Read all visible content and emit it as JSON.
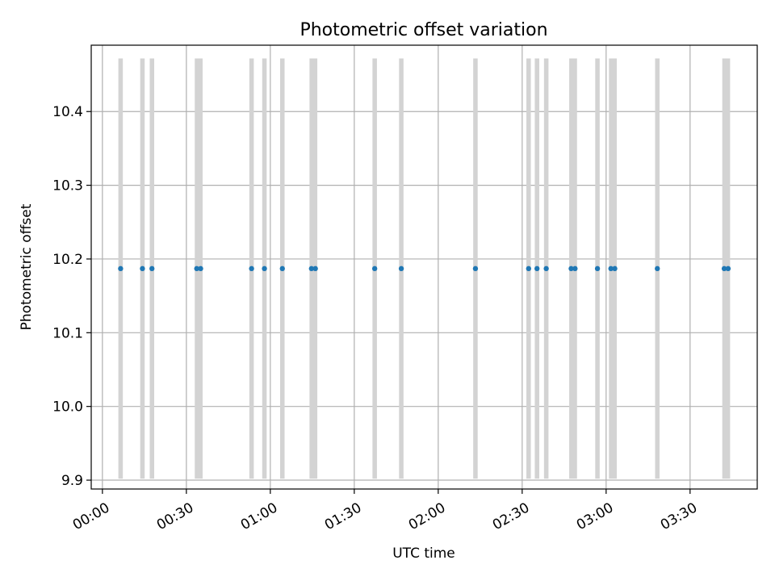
{
  "chart_data": {
    "type": "scatter",
    "title": "Photometric offset variation",
    "xlabel": "UTC time",
    "ylabel": "Photometric offset",
    "x_unit": "minutes",
    "xlim": [
      -4,
      234
    ],
    "ylim": [
      9.888,
      10.49
    ],
    "grid": true,
    "x_ticks": [
      {
        "value": 0,
        "label": "00:00"
      },
      {
        "value": 30,
        "label": "00:30"
      },
      {
        "value": 60,
        "label": "01:00"
      },
      {
        "value": 90,
        "label": "01:30"
      },
      {
        "value": 120,
        "label": "02:00"
      },
      {
        "value": 150,
        "label": "02:30"
      },
      {
        "value": 180,
        "label": "03:00"
      },
      {
        "value": 210,
        "label": "03:30"
      }
    ],
    "y_ticks": [
      {
        "value": 9.9,
        "label": "9.9"
      },
      {
        "value": 10.0,
        "label": "10.0"
      },
      {
        "value": 10.1,
        "label": "10.1"
      },
      {
        "value": 10.2,
        "label": "10.2"
      },
      {
        "value": 10.3,
        "label": "10.3"
      },
      {
        "value": 10.4,
        "label": "10.4"
      }
    ],
    "bands": {
      "y_range": [
        9.902,
        10.472
      ],
      "color": "#d3d3d3",
      "intervals": [
        [
          5.7,
          7.3
        ],
        [
          13.5,
          15.1
        ],
        [
          16.9,
          18.5
        ],
        [
          33.0,
          35.8
        ],
        [
          52.5,
          54.1
        ],
        [
          57.1,
          58.7
        ],
        [
          63.5,
          65.1
        ],
        [
          74.0,
          76.8
        ],
        [
          96.5,
          98.1
        ],
        [
          106.0,
          107.6
        ],
        [
          132.5,
          134.1
        ],
        [
          151.5,
          153.1
        ],
        [
          154.5,
          156.1
        ],
        [
          157.8,
          159.4
        ],
        [
          166.8,
          169.6
        ],
        [
          176.1,
          177.7
        ],
        [
          181.0,
          183.8
        ],
        [
          197.5,
          199.1
        ],
        [
          221.5,
          224.3
        ]
      ]
    },
    "series": [
      {
        "color": "#1f77b4",
        "x": [
          6.5,
          14.3,
          17.7,
          33.7,
          35.1,
          53.3,
          57.9,
          64.3,
          74.7,
          76.1,
          97.3,
          106.8,
          133.3,
          152.3,
          155.3,
          158.6,
          167.5,
          168.9,
          176.9,
          181.7,
          183.1,
          198.3,
          222.2,
          223.6
        ],
        "y": [
          10.187,
          10.187,
          10.187,
          10.187,
          10.187,
          10.187,
          10.187,
          10.187,
          10.187,
          10.187,
          10.187,
          10.187,
          10.187,
          10.187,
          10.187,
          10.187,
          10.187,
          10.187,
          10.187,
          10.187,
          10.187,
          10.187,
          10.187,
          10.187
        ]
      }
    ]
  }
}
